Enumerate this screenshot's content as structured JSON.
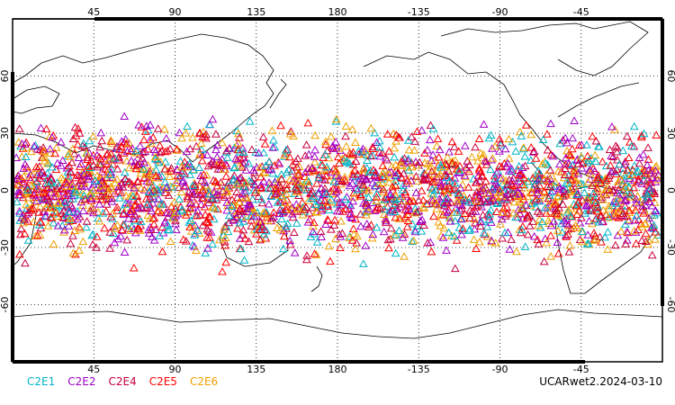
{
  "chart_data": {
    "type": "scatter",
    "title": "",
    "projection": "cylindrical",
    "lon_center": 180,
    "lat_range": [
      -90,
      90
    ],
    "top_ticks": [
      "45",
      "90",
      "135",
      "180",
      "-135",
      "-90",
      "-45"
    ],
    "bottom_ticks": [
      "45",
      "90",
      "135",
      "180",
      "-135",
      "-90",
      "-45"
    ],
    "lat_ticks": [
      "60",
      "30",
      "0",
      "-30",
      "-60"
    ],
    "grid": true,
    "marker": "triangle",
    "series": [
      {
        "name": "C2E1",
        "color": "#00b4c8"
      },
      {
        "name": "C2E2",
        "color": "#a000c8"
      },
      {
        "name": "C2E4",
        "color": "#c8003c"
      },
      {
        "name": "C2E5",
        "color": "#ff0000"
      },
      {
        "name": "C2E6",
        "color": "#f0a000"
      }
    ],
    "observation_band_lat": [
      -45,
      45
    ]
  },
  "footer": "UCARwet2.2024-03-10"
}
